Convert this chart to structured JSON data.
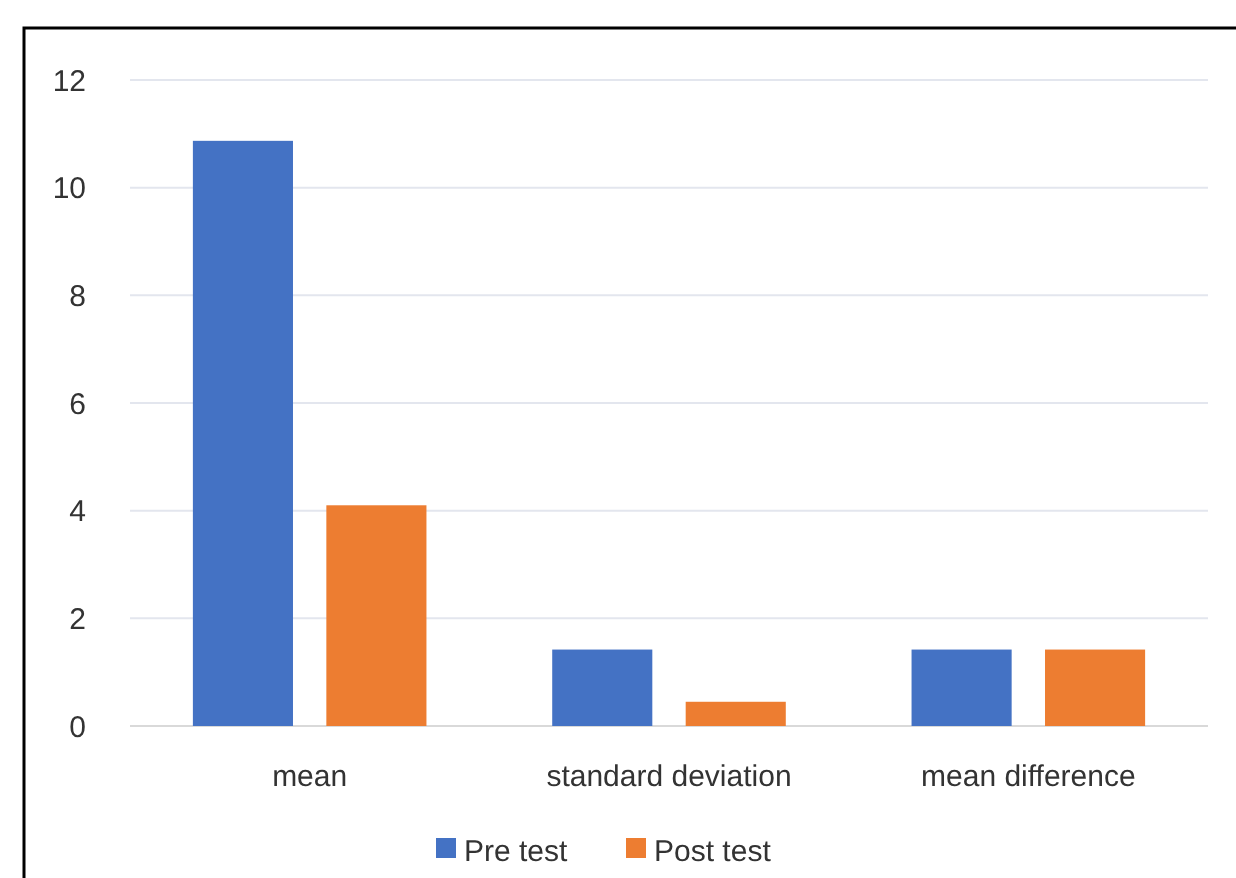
{
  "chart_data": {
    "type": "bar",
    "categories": [
      "mean",
      "standard deviation",
      "mean difference"
    ],
    "series": [
      {
        "name": "Pre test",
        "color": "#4472c4",
        "values": [
          10.87,
          1.42,
          1.42
        ]
      },
      {
        "name": "Post test",
        "color": "#ed7d31",
        "values": [
          4.1,
          0.45,
          1.42
        ]
      }
    ],
    "ylim": [
      0,
      12
    ],
    "yticks": [
      0,
      2,
      4,
      6,
      8,
      10,
      12
    ],
    "grid": "y",
    "legend": "bottom"
  }
}
